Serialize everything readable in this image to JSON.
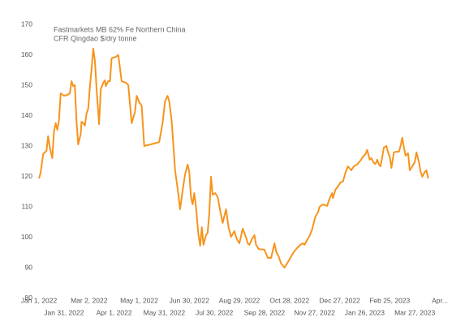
{
  "chart_data": {
    "type": "line",
    "title_lines": [
      "Fastmarkets MB 62% Fe Northern China",
      "CFR Qingdao $/dry tonne"
    ],
    "color": "#f7941d",
    "x": [
      "2022-01-01",
      "2022-01-03",
      "2022-01-06",
      "2022-01-10",
      "2022-01-12",
      "2022-01-14",
      "2022-01-17",
      "2022-01-19",
      "2022-01-21",
      "2022-01-23",
      "2022-01-25",
      "2022-01-27",
      "2022-01-31",
      "2022-02-04",
      "2022-02-07",
      "2022-02-09",
      "2022-02-11",
      "2022-02-13",
      "2022-02-15",
      "2022-02-17",
      "2022-02-20",
      "2022-02-21",
      "2022-02-23",
      "2022-02-25",
      "2022-02-27",
      "2022-03-01",
      "2022-03-03",
      "2022-03-05",
      "2022-03-07",
      "2022-03-09",
      "2022-03-11",
      "2022-03-14",
      "2022-03-16",
      "2022-03-19",
      "2022-03-21",
      "2022-03-22",
      "2022-03-25",
      "2022-03-27",
      "2022-03-29",
      "2022-04-03",
      "2022-04-06",
      "2022-04-10",
      "2022-04-15",
      "2022-04-18",
      "2022-04-22",
      "2022-04-26",
      "2022-04-28",
      "2022-05-01",
      "2022-05-04",
      "2022-05-07",
      "2022-05-19",
      "2022-05-25",
      "2022-05-29",
      "2022-06-01",
      "2022-06-04",
      "2022-06-06",
      "2022-06-09",
      "2022-06-13",
      "2022-06-16",
      "2022-06-19",
      "2022-06-22",
      "2022-06-25",
      "2022-06-28",
      "2022-06-30",
      "2022-07-02",
      "2022-07-04",
      "2022-07-06",
      "2022-07-08",
      "2022-07-11",
      "2022-07-13",
      "2022-07-15",
      "2022-07-17",
      "2022-07-20",
      "2022-07-22",
      "2022-07-24",
      "2022-07-26",
      "2022-07-28",
      "2022-07-31",
      "2022-08-03",
      "2022-08-06",
      "2022-08-09",
      "2022-08-13",
      "2022-08-16",
      "2022-08-19",
      "2022-08-23",
      "2022-08-26",
      "2022-08-29",
      "2022-09-02",
      "2022-09-06",
      "2022-09-08",
      "2022-09-10",
      "2022-09-13",
      "2022-09-16",
      "2022-09-18",
      "2022-09-21",
      "2022-09-28",
      "2022-10-02",
      "2022-10-06",
      "2022-10-10",
      "2022-10-12",
      "2022-10-15",
      "2022-10-18",
      "2022-10-22",
      "2022-10-25",
      "2022-10-29",
      "2022-11-02",
      "2022-11-06",
      "2022-11-10",
      "2022-11-13",
      "2022-11-15",
      "2022-11-18",
      "2022-11-21",
      "2022-11-24",
      "2022-11-28",
      "2022-12-01",
      "2022-12-03",
      "2022-12-07",
      "2022-12-10",
      "2022-12-12",
      "2022-12-15",
      "2022-12-18",
      "2022-12-19",
      "2022-12-22",
      "2022-12-25",
      "2022-12-28",
      "2022-12-31",
      "2023-01-03",
      "2023-01-06",
      "2023-01-10",
      "2023-01-13",
      "2023-01-17",
      "2023-01-21",
      "2023-01-24",
      "2023-01-27",
      "2023-01-29",
      "2023-02-01",
      "2023-02-03",
      "2023-02-06",
      "2023-02-08",
      "2023-02-10",
      "2023-02-12",
      "2023-02-14",
      "2023-02-16",
      "2023-02-18",
      "2023-02-21",
      "2023-02-23",
      "2023-02-25",
      "2023-02-27",
      "2023-03-02",
      "2023-03-05",
      "2023-03-08",
      "2023-03-10",
      "2023-03-12",
      "2023-03-14",
      "2023-03-16",
      "2023-03-19",
      "2023-03-21",
      "2023-03-24",
      "2023-03-27",
      "2023-03-29",
      "2023-04-01",
      "2023-04-03",
      "2023-04-05",
      "2023-04-08",
      "2023-04-10",
      "2023-04-12"
    ],
    "values": [
      119.3,
      121.2,
      127.3,
      128.4,
      133.2,
      129.5,
      126.0,
      134.8,
      137.5,
      135.3,
      138.5,
      147.3,
      146.5,
      146.8,
      147.3,
      151.3,
      149.7,
      150.0,
      138.0,
      130.5,
      134.0,
      138.0,
      137.5,
      136.7,
      140.7,
      142.3,
      149.5,
      155.3,
      162.0,
      158.0,
      148.7,
      137.2,
      148.7,
      150.8,
      151.6,
      149.7,
      151.3,
      151.3,
      158.8,
      159.3,
      159.9,
      151.3,
      150.8,
      150.0,
      137.5,
      141.2,
      146.5,
      144.4,
      143.3,
      130.0,
      130.8,
      131.3,
      137.5,
      144.7,
      146.5,
      144.7,
      138.0,
      122.0,
      116.1,
      109.2,
      115.3,
      120.7,
      123.9,
      121.5,
      113.2,
      110.8,
      114.5,
      110.0,
      100.7,
      97.2,
      103.3,
      97.5,
      100.7,
      101.5,
      108.1,
      119.9,
      114.0,
      114.5,
      113.2,
      108.7,
      104.7,
      109.2,
      103.3,
      100.1,
      102.0,
      99.3,
      98.0,
      102.8,
      99.9,
      98.0,
      97.5,
      99.3,
      100.7,
      97.5,
      96.1,
      95.9,
      93.2,
      93.2,
      98.0,
      95.3,
      93.7,
      91.3,
      90.0,
      91.3,
      93.2,
      95.1,
      96.4,
      97.5,
      98.0,
      97.5,
      99.1,
      100.4,
      102.5,
      106.8,
      108.1,
      110.0,
      110.8,
      110.5,
      110.3,
      112.7,
      114.5,
      112.9,
      115.6,
      116.7,
      118.0,
      118.3,
      121.2,
      123.3,
      122.0,
      123.3,
      123.9,
      125.2,
      126.5,
      127.3,
      128.7,
      125.5,
      126.0,
      124.4,
      124.1,
      125.5,
      123.9,
      123.3,
      126.3,
      129.5,
      130.0,
      127.9,
      126.5,
      122.8,
      127.9,
      128.1,
      128.1,
      130.0,
      132.7,
      129.5,
      126.8,
      127.6,
      122.0,
      123.3,
      124.7,
      127.9,
      124.7,
      121.5,
      119.9,
      121.5,
      122.0,
      119.3
    ],
    "xlim": [
      "2022-01-01",
      "2023-04-26"
    ],
    "xticks": [
      {
        "value": "2022-01-01",
        "label": "Jan 1, 2022"
      },
      {
        "value": "2022-01-31",
        "label": "Jan 31, 2022"
      },
      {
        "value": "2022-03-02",
        "label": "Mar 2, 2022"
      },
      {
        "value": "2022-04-01",
        "label": "Apr 1, 2022"
      },
      {
        "value": "2022-05-01",
        "label": "May 1, 2022"
      },
      {
        "value": "2022-05-31",
        "label": "May 31, 2022"
      },
      {
        "value": "2022-06-30",
        "label": "Jun 30, 2022"
      },
      {
        "value": "2022-07-30",
        "label": "Jul 30, 2022"
      },
      {
        "value": "2022-08-29",
        "label": "Aug 29, 2022"
      },
      {
        "value": "2022-09-28",
        "label": "Sep 28, 2022"
      },
      {
        "value": "2022-10-28",
        "label": "Oct 28, 2022"
      },
      {
        "value": "2022-11-27",
        "label": "Nov 27, 2022"
      },
      {
        "value": "2022-12-27",
        "label": "Dec 27, 2022"
      },
      {
        "value": "2023-01-26",
        "label": "Jan 26, 2023"
      },
      {
        "value": "2023-02-25",
        "label": "Feb 25, 2023"
      },
      {
        "value": "2023-03-27",
        "label": "Mar 27, 2023"
      },
      {
        "value": "2023-04-26",
        "label": "Apr..."
      }
    ],
    "ylim": [
      80,
      170
    ],
    "yticks": [
      80,
      90,
      100,
      110,
      120,
      130,
      140,
      150,
      160,
      170
    ]
  }
}
